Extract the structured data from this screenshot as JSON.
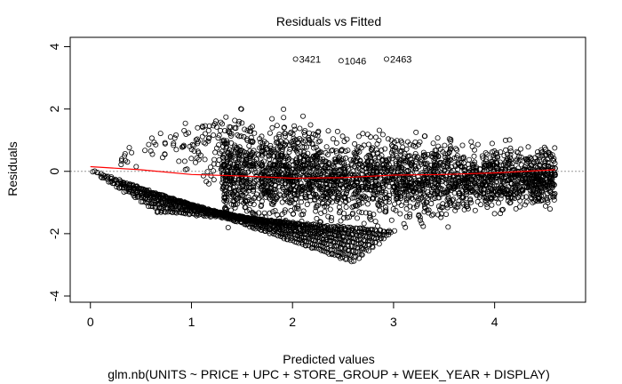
{
  "chart_data": {
    "type": "scatter",
    "title": "Residuals vs Fitted",
    "xlabel": "Predicted values",
    "subtitle": "glm.nb(UNITS ~ PRICE + UPC + STORE_GROUP + WEEK_YEAR + DISPLAY)",
    "ylabel": "Residuals",
    "xlim": [
      -0.2,
      4.9
    ],
    "ylim": [
      -4.2,
      4.3
    ],
    "x_ticks": [
      0,
      1,
      2,
      3,
      4
    ],
    "y_ticks": [
      -4,
      -2,
      0,
      2,
      4
    ],
    "x_tick_labels": [
      "0",
      "1",
      "2",
      "3",
      "4"
    ],
    "y_tick_labels": [
      "-4",
      "-2",
      "0",
      "2",
      "4"
    ],
    "reference_line": {
      "y": 0,
      "style": "dotted",
      "color": "#999999"
    },
    "smooth": {
      "name": "lowess",
      "color": "#ff0000",
      "x": [
        0.0,
        0.5,
        1.0,
        1.5,
        2.0,
        2.5,
        3.0,
        3.5,
        4.0,
        4.6
      ],
      "y": [
        0.15,
        0.05,
        -0.1,
        -0.15,
        -0.22,
        -0.2,
        -0.12,
        -0.1,
        -0.05,
        0.05
      ]
    },
    "outliers": [
      {
        "label": "3421",
        "x": 2.03,
        "y": 3.6
      },
      {
        "label": "1046",
        "x": 2.48,
        "y": 3.55
      },
      {
        "label": "2463",
        "x": 2.93,
        "y": 3.6
      }
    ],
    "points_color": "#000000",
    "points_note": "bands of residuals decreasing with predicted values"
  }
}
